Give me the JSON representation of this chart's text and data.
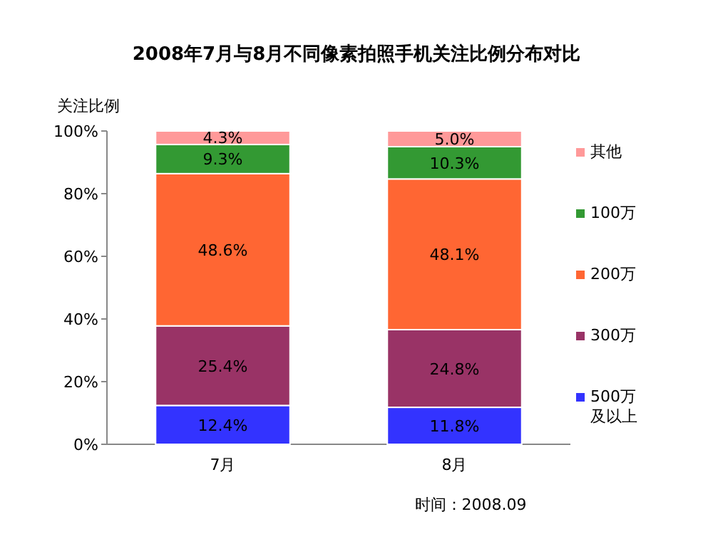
{
  "chart_data": {
    "type": "bar",
    "stacked": true,
    "title": "2008年7月与8月不同像素拍照手机关注比例分布对比",
    "ylabel": "关注比例",
    "categories": [
      "7月",
      "8月"
    ],
    "series": [
      {
        "name": "500万及以上",
        "color": "#3333ff",
        "values": [
          12.4,
          11.8
        ],
        "value_labels": [
          "12.4%",
          "11.8%"
        ]
      },
      {
        "name": "300万",
        "color": "#993366",
        "values": [
          25.4,
          24.8
        ],
        "value_labels": [
          "25.4%",
          "24.8%"
        ]
      },
      {
        "name": "200万",
        "color": "#ff6633",
        "values": [
          48.6,
          48.1
        ],
        "value_labels": [
          "48.6%",
          "48.1%"
        ]
      },
      {
        "name": "100万",
        "color": "#339933",
        "values": [
          9.3,
          10.3
        ],
        "value_labels": [
          "9.3%",
          "10.3%"
        ]
      },
      {
        "name": "其他",
        "color": "#ff9999",
        "values": [
          4.3,
          5.0
        ],
        "value_labels": [
          "4.3%",
          "5.0%"
        ]
      }
    ],
    "ylim": [
      0,
      100
    ],
    "yticks": [
      {
        "value": 0,
        "label": "0%"
      },
      {
        "value": 20,
        "label": "20%"
      },
      {
        "value": 40,
        "label": "40%"
      },
      {
        "value": 60,
        "label": "60%"
      },
      {
        "value": 80,
        "label": "80%"
      },
      {
        "value": 100,
        "label": "100%"
      }
    ],
    "legend": "right",
    "grid": false,
    "annotations": [
      "时间：2008.09"
    ]
  }
}
